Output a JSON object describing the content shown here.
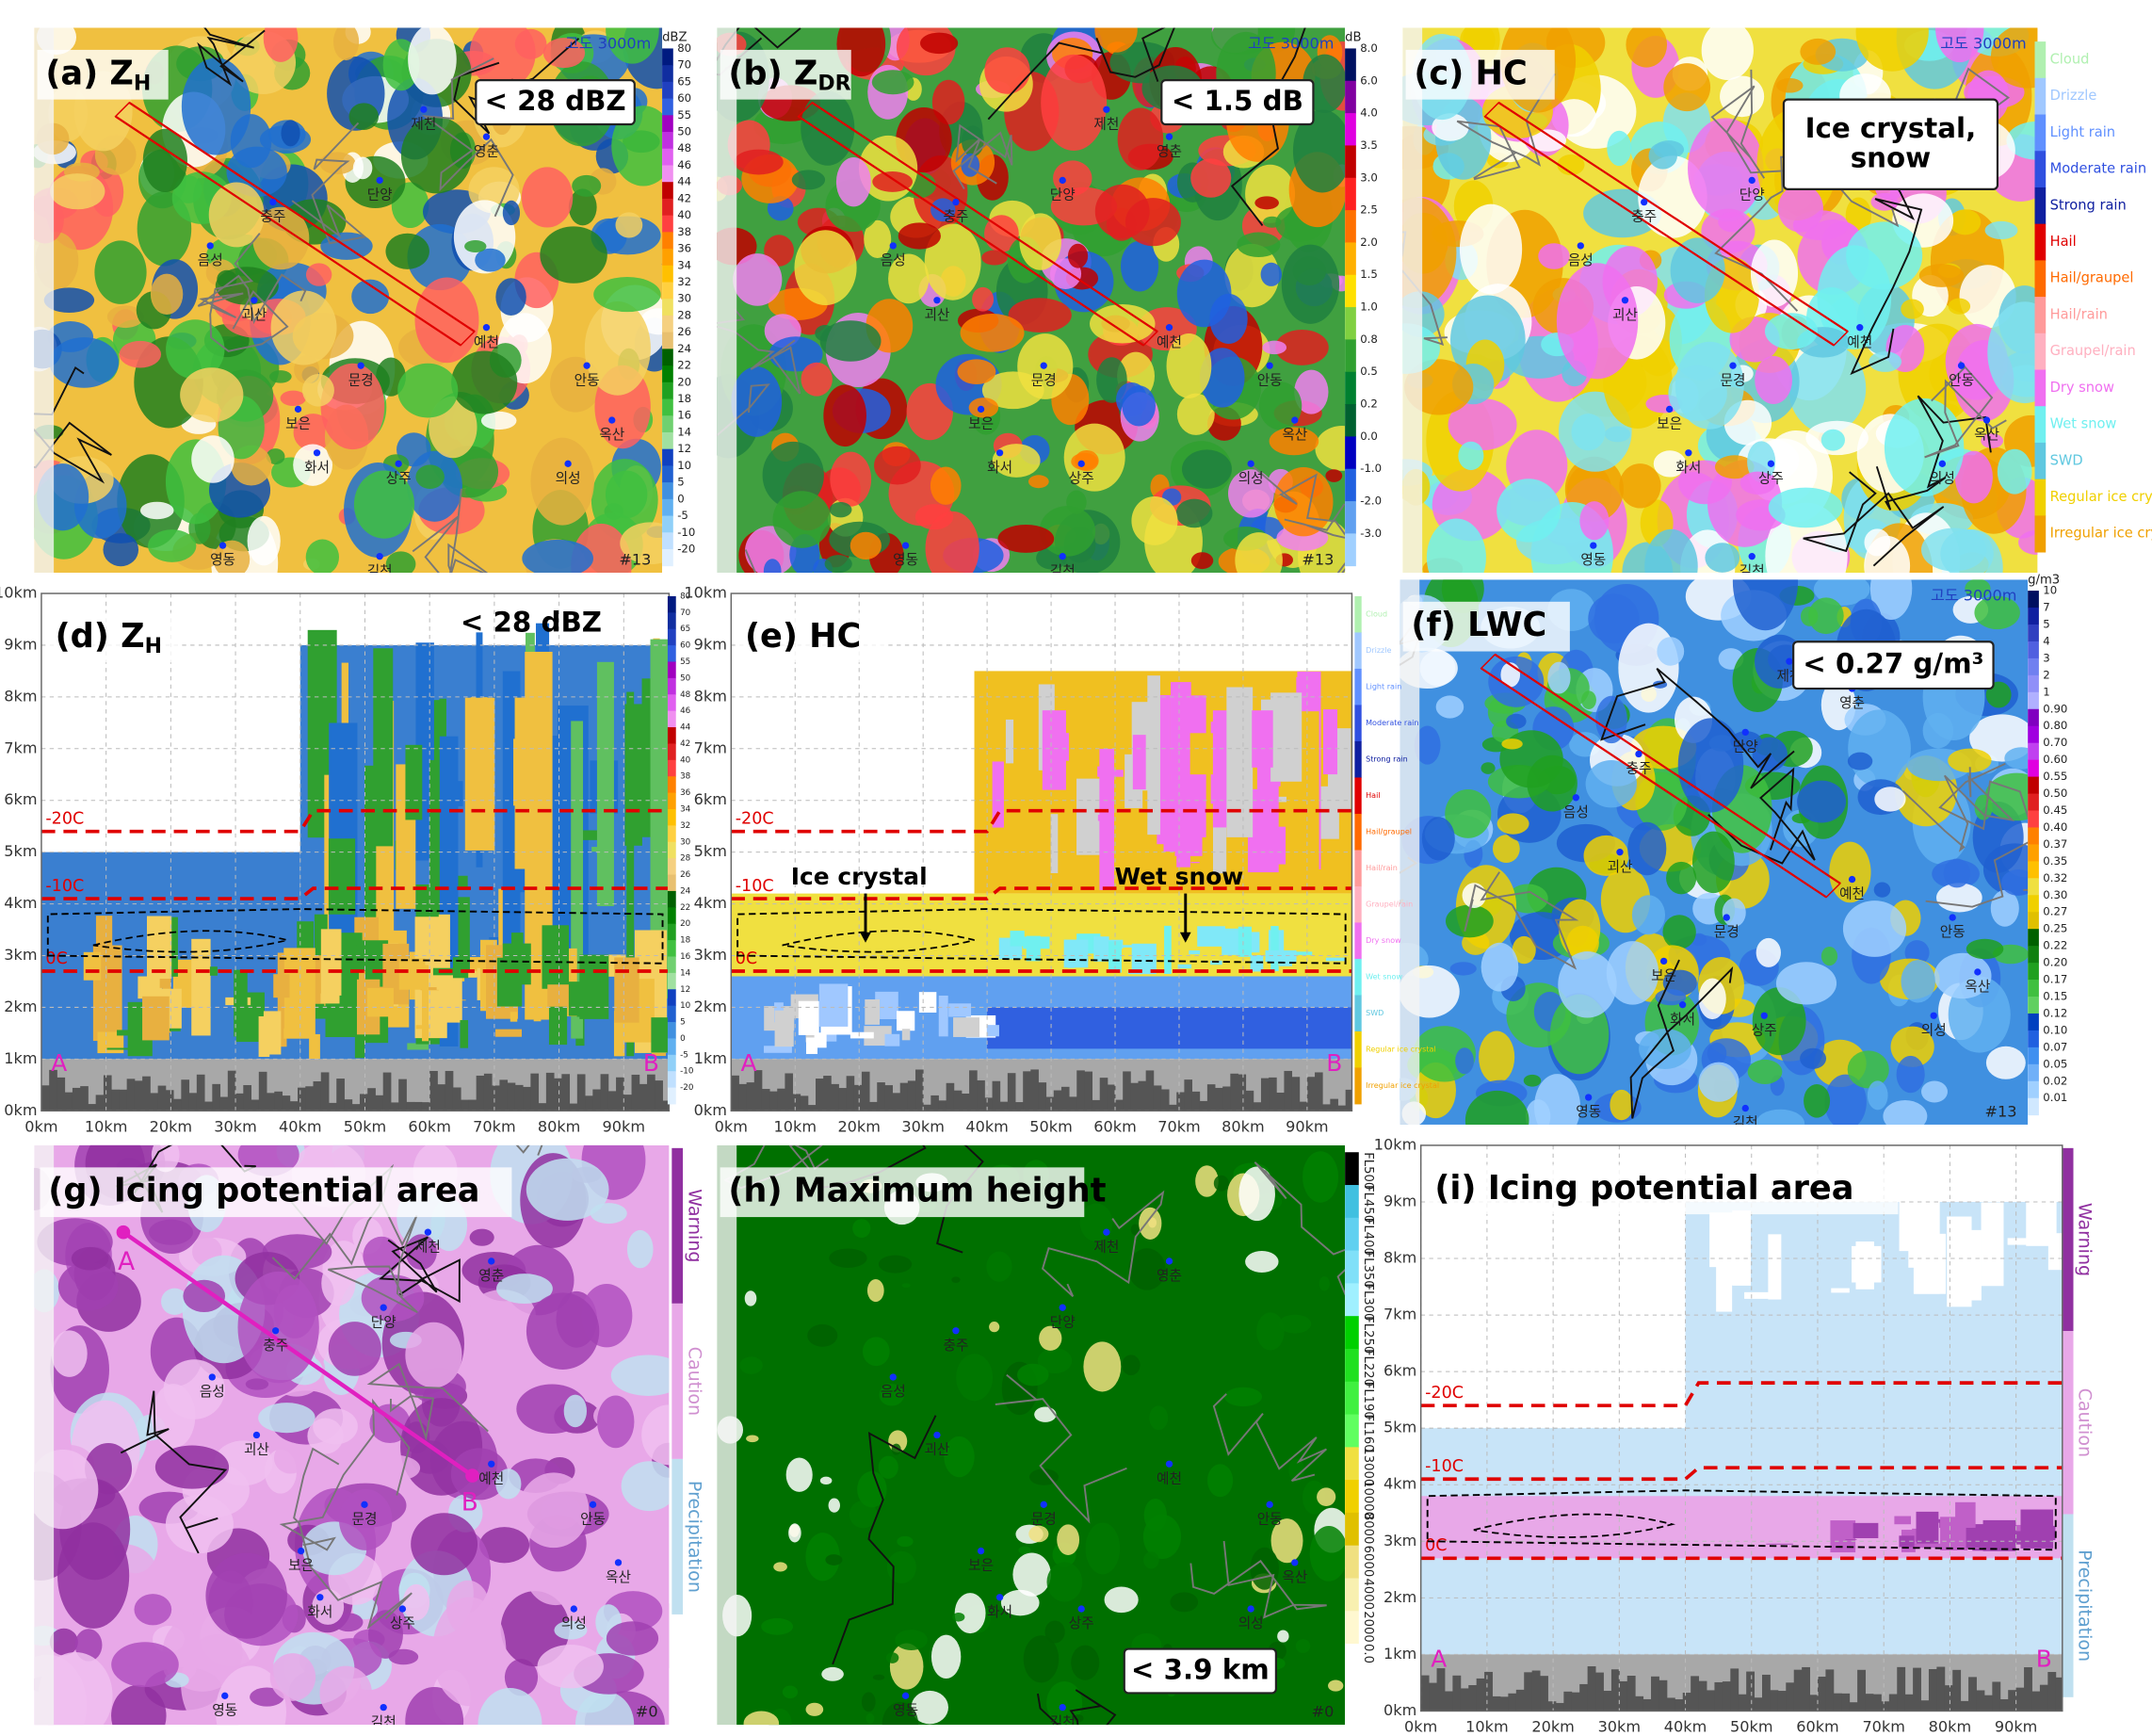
{
  "panels": {
    "a": {
      "label": "(a) Z",
      "sub": "H",
      "note": [
        "< 28 dBZ"
      ],
      "altitude": "고도 3000m",
      "frame": "#13",
      "unit": "dBZ",
      "scale": [
        "80",
        "70",
        "65",
        "60",
        "55",
        "50",
        "48",
        "46",
        "44",
        "42",
        "40",
        "38",
        "36",
        "34",
        "32",
        "30",
        "28",
        "26",
        "24",
        "22",
        "20",
        "18",
        "16",
        "14",
        "12",
        "10",
        "5",
        "0",
        "-5",
        "-10",
        "-20"
      ]
    },
    "b": {
      "label": "(b) Z",
      "sub": "DR",
      "note": [
        "< 1.5 dB"
      ],
      "altitude": "고도 3000m",
      "frame": "#13",
      "unit": "dB",
      "scale": [
        "8.0",
        "6.0",
        "4.0",
        "3.5",
        "3.0",
        "2.5",
        "2.0",
        "1.5",
        "1.0",
        "0.8",
        "0.5",
        "0.2",
        "0.0",
        "-1.0",
        "-2.0",
        "-3.0"
      ]
    },
    "c": {
      "label": "(c) HC",
      "note": [
        "Ice crystal,",
        "snow"
      ],
      "altitude": "고도 3000m",
      "scale": [
        "Cloud",
        "Drizzle",
        "Light rain",
        "Moderate rain",
        "Strong rain",
        "Hail",
        "Hail/graupel",
        "Hail/rain",
        "Graupel/rain",
        "Dry snow",
        "Wet snow",
        "SWD",
        "Regular ice crystal",
        "Irregular ice crystal"
      ]
    },
    "d": {
      "label": "(d) Z",
      "sub": "H",
      "note": [
        "< 28 dBZ"
      ]
    },
    "e": {
      "label": "(e) HC",
      "annotations": [
        "Ice crystal",
        "Wet snow"
      ]
    },
    "f": {
      "label": "(f) LWC",
      "note": [
        "< 0.27 g/m³"
      ],
      "altitude": "고도 3000m",
      "frame": "#13",
      "unit": "g/m3",
      "scale": [
        "10",
        "7",
        "5",
        "4",
        "3",
        "2",
        "1",
        "0.90",
        "0.80",
        "0.70",
        "0.60",
        "0.55",
        "0.50",
        "0.45",
        "0.40",
        "0.37",
        "0.35",
        "0.32",
        "0.30",
        "0.27",
        "0.25",
        "0.22",
        "0.20",
        "0.17",
        "0.15",
        "0.12",
        "0.10",
        "0.07",
        "0.05",
        "0.02",
        "0.01"
      ]
    },
    "g": {
      "label": "(g) Icing potential area",
      "frame": "#0",
      "legend": [
        "Warning",
        "Caution",
        "Precipitation"
      ]
    },
    "h": {
      "label": "(h) Maximum height",
      "note": [
        "< 3.9 km"
      ],
      "frame": "#0",
      "scale": [
        "FL500",
        "FL450",
        "FL400",
        "FL350",
        "FL300",
        "FL250",
        "FL220",
        "FL190",
        "FL160",
        "13000",
        "10000",
        "8000",
        "6000",
        "4000",
        "2000",
        "0.0"
      ]
    },
    "i": {
      "label": "(i) Icing potential area"
    }
  },
  "places": [
    "제천",
    "영춘",
    "단양",
    "충주",
    "음성",
    "괴산",
    "문경",
    "예천",
    "상주",
    "보은",
    "의성",
    "안동",
    "영동",
    "김천",
    "화서",
    "옥산"
  ],
  "cross_section": {
    "yticks": [
      "0km",
      "1km",
      "2km",
      "3km",
      "4km",
      "5km",
      "6km",
      "7km",
      "8km",
      "9km",
      "10km"
    ],
    "xticks": [
      "0km",
      "10km",
      "20km",
      "30km",
      "40km",
      "50km",
      "60km",
      "70km",
      "80km",
      "90km"
    ],
    "isotherms": [
      "-20C",
      "-10C",
      "0C"
    ],
    "ends": [
      "A",
      "B"
    ]
  }
}
